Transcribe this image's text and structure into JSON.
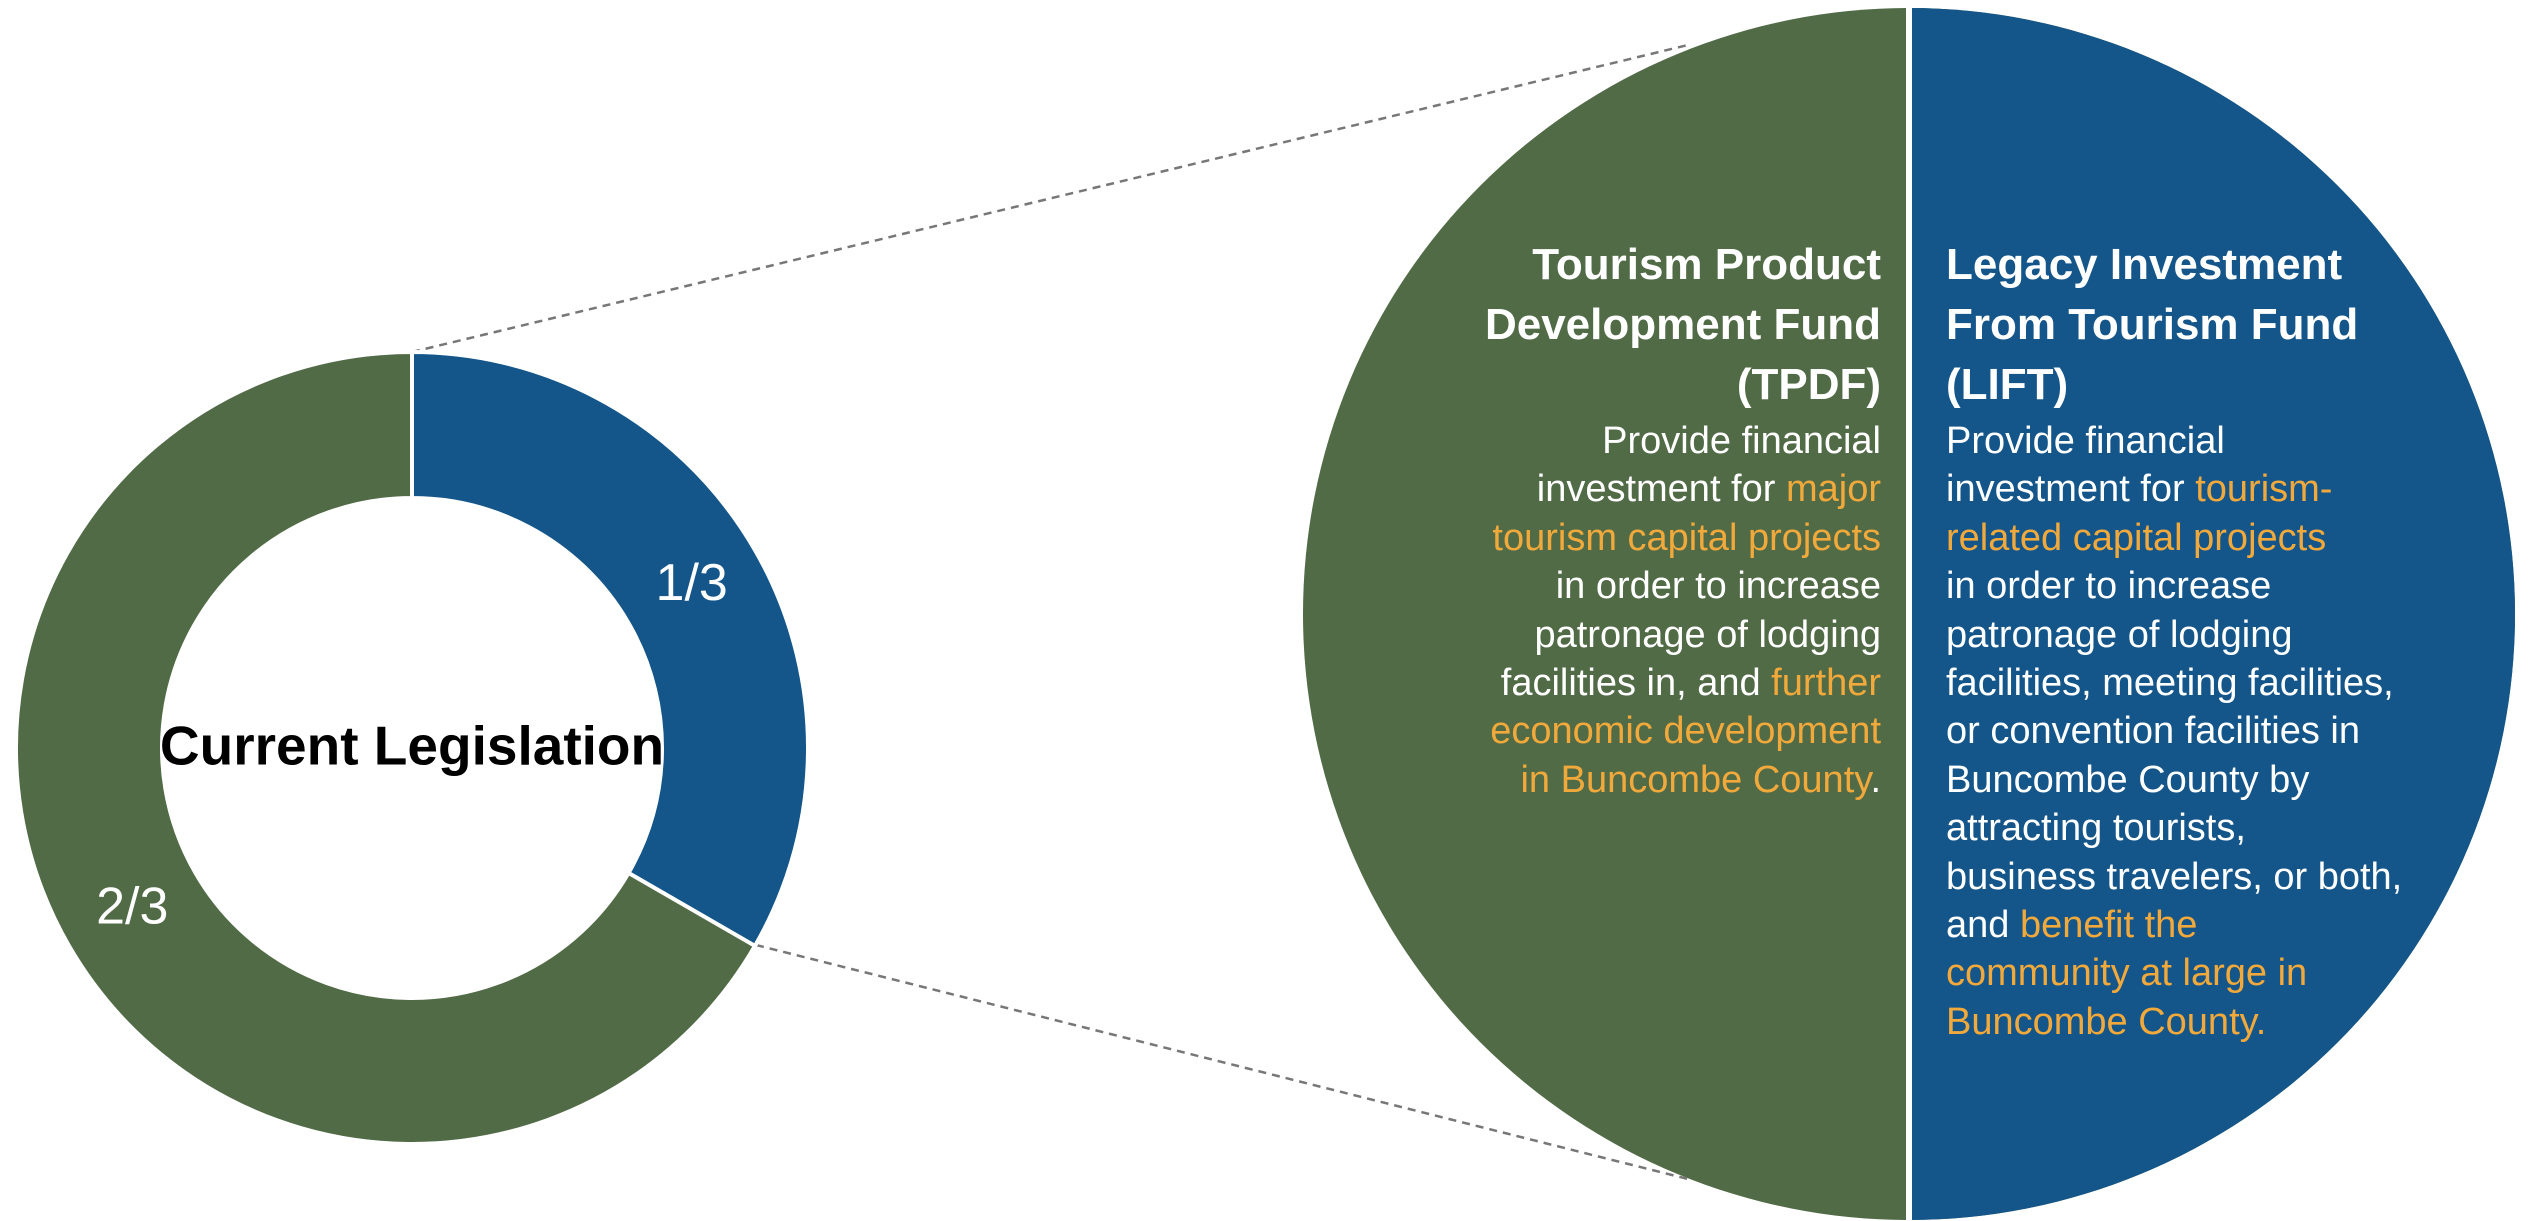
{
  "chart_data": {
    "type": "pie",
    "center_label": "Current Legislation",
    "values": [
      0.3333,
      0.6667
    ],
    "value_labels": [
      "1/3",
      "2/3"
    ],
    "colors": [
      "#14558a",
      "#516b46"
    ]
  },
  "detail": {
    "panels": [
      {
        "title_lines": [
          "Tourism Product",
          "Development Fund",
          "(TPDF)"
        ],
        "body_lines": [
          [
            {
              "text": "Provide financial"
            }
          ],
          [
            {
              "text": "investment for "
            },
            {
              "text": "major",
              "accent": true
            }
          ],
          [
            {
              "text": "tourism capital projects",
              "accent": true
            }
          ],
          [
            {
              "text": "in order to increase"
            }
          ],
          [
            {
              "text": "patronage of lodging"
            }
          ],
          [
            {
              "text": "facilities in, and "
            },
            {
              "text": "further",
              "accent": true
            }
          ],
          [
            {
              "text": "economic development",
              "accent": true
            }
          ],
          [
            {
              "text": "in Buncombe County",
              "accent": true
            },
            {
              "text": "."
            }
          ]
        ]
      },
      {
        "title_lines": [
          "Legacy Investment",
          "From Tourism Fund",
          "(LIFT)"
        ],
        "body_lines": [
          [
            {
              "text": "Provide financial"
            }
          ],
          [
            {
              "text": "investment for "
            },
            {
              "text": "tourism-",
              "accent": true
            }
          ],
          [
            {
              "text": "related capital projects",
              "accent": true
            }
          ],
          [
            {
              "text": "in order to increase"
            }
          ],
          [
            {
              "text": "patronage of lodging"
            }
          ],
          [
            {
              "text": "facilities, meeting facilities,"
            }
          ],
          [
            {
              "text": "or convention facilities in"
            }
          ],
          [
            {
              "text": "Buncombe County by"
            }
          ],
          [
            {
              "text": "attracting tourists,"
            }
          ],
          [
            {
              "text": "business travelers, or both,"
            }
          ],
          [
            {
              "text": "and "
            },
            {
              "text": "benefit the",
              "accent": true
            }
          ],
          [
            {
              "text": "community at large in",
              "accent": true
            }
          ],
          [
            {
              "text": "Buncombe County.",
              "accent": true
            }
          ]
        ]
      }
    ]
  }
}
